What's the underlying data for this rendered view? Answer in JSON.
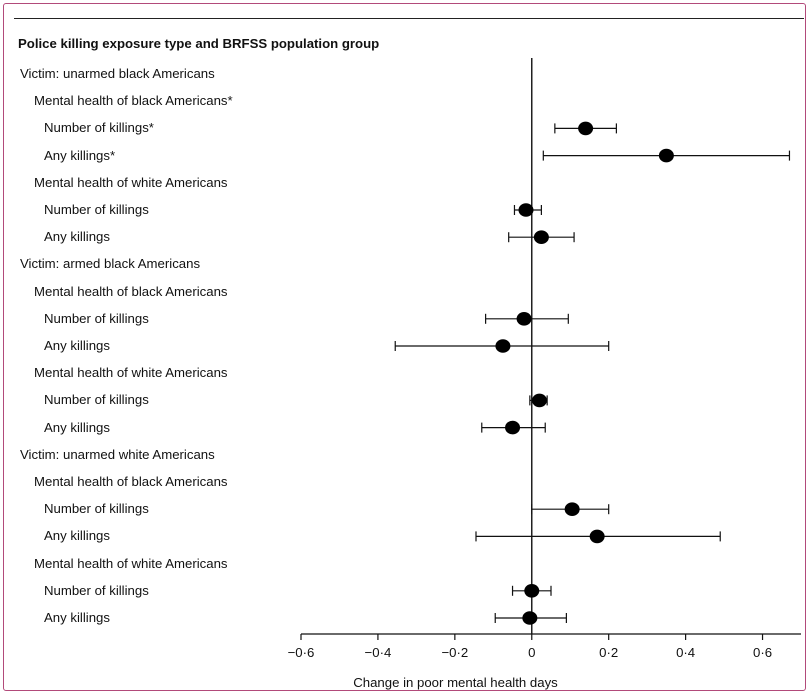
{
  "chart_data": {
    "type": "forest",
    "title": "Police killing exposure type and BRFSS population group",
    "xlabel": "Change in poor mental health days",
    "xlim": [
      -0.6,
      0.7
    ],
    "xticks": [
      -0.6,
      -0.4,
      -0.2,
      0,
      0.2,
      0.4,
      0.6
    ],
    "xtick_labels": [
      "−0·6",
      "−0·4",
      "−0·2",
      "0",
      "0·2",
      "0·4",
      "0·6"
    ],
    "reference_line": 0,
    "rows": [
      {
        "label": "Victim: unarmed black Americans",
        "level": 0
      },
      {
        "label": "Mental health of black Americans*",
        "level": 1
      },
      {
        "label": "Number of killings*",
        "level": 2,
        "estimate": 0.14,
        "lower": 0.06,
        "upper": 0.22
      },
      {
        "label": "Any killings*",
        "level": 2,
        "estimate": 0.35,
        "lower": 0.03,
        "upper": 0.67
      },
      {
        "label": "Mental health of white Americans",
        "level": 1
      },
      {
        "label": "Number of killings",
        "level": 2,
        "estimate": -0.015,
        "lower": -0.045,
        "upper": 0.025
      },
      {
        "label": "Any killings",
        "level": 2,
        "estimate": 0.025,
        "lower": -0.06,
        "upper": 0.11
      },
      {
        "label": "Victim: armed black Americans",
        "level": 0
      },
      {
        "label": "Mental health of black Americans",
        "level": 1
      },
      {
        "label": "Number of killings",
        "level": 2,
        "estimate": -0.02,
        "lower": -0.12,
        "upper": 0.095
      },
      {
        "label": "Any killings",
        "level": 2,
        "estimate": -0.075,
        "lower": -0.355,
        "upper": 0.2
      },
      {
        "label": "Mental health of white Americans",
        "level": 1
      },
      {
        "label": "Number of killings",
        "level": 2,
        "estimate": 0.02,
        "lower": -0.005,
        "upper": 0.04
      },
      {
        "label": "Any killings",
        "level": 2,
        "estimate": -0.05,
        "lower": -0.13,
        "upper": 0.035
      },
      {
        "label": "Victim: unarmed white Americans",
        "level": 0
      },
      {
        "label": "Mental health of black Americans",
        "level": 1
      },
      {
        "label": "Number of killings",
        "level": 2,
        "estimate": 0.105,
        "lower": 0.0,
        "upper": 0.2
      },
      {
        "label": "Any killings",
        "level": 2,
        "estimate": 0.17,
        "lower": -0.145,
        "upper": 0.49
      },
      {
        "label": "Mental health of white Americans",
        "level": 1
      },
      {
        "label": "Number of killings",
        "level": 2,
        "estimate": 0.0,
        "lower": -0.05,
        "upper": 0.05
      },
      {
        "label": "Any killings",
        "level": 2,
        "estimate": -0.005,
        "lower": -0.095,
        "upper": 0.09
      }
    ]
  },
  "colors": {
    "frame": "#b24a7a",
    "ink": "#111111",
    "marker": "#000000"
  }
}
